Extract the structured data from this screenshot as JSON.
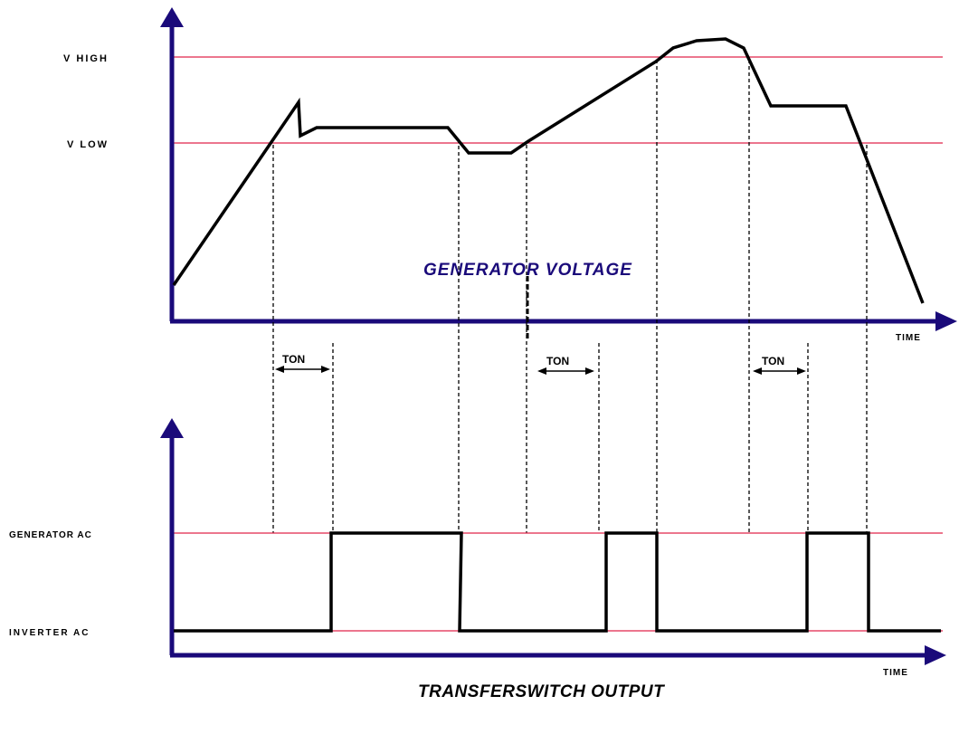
{
  "top_panel": {
    "level_high_label": "V HIGH",
    "level_low_label": "V LOW",
    "caption": "GENERATOR VOLTAGE",
    "time_label": "TIME"
  },
  "delay_markers": [
    {
      "label": "TON"
    },
    {
      "label": "TON"
    },
    {
      "label": "TON"
    }
  ],
  "bottom_panel": {
    "level_high_label": "GENERATOR AC",
    "level_low_label": "INVERTER AC",
    "caption": "TRANSFERSWITCH OUTPUT",
    "time_label": "TIME"
  },
  "colors": {
    "axis": "#1a0a7a",
    "threshold": "#e0244a",
    "trace": "#000000",
    "caption": "#1a0a7a",
    "guide": "#000000"
  }
}
